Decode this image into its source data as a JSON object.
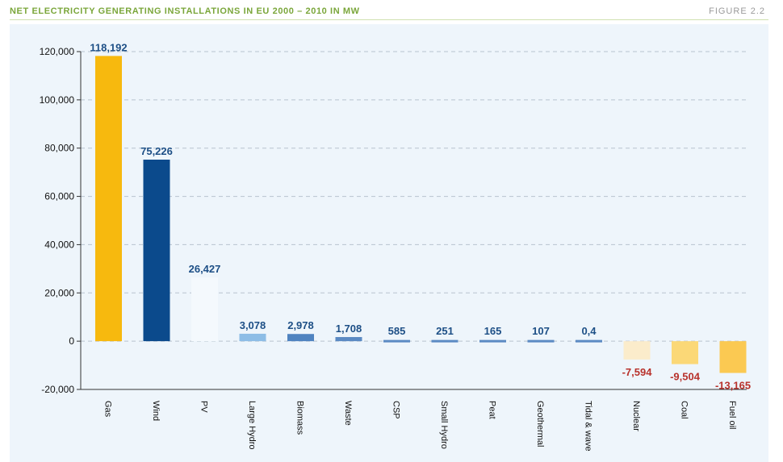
{
  "header": {
    "title": "NET ELECTRICITY GENERATING INSTALLATIONS IN EU 2000 – 2010 IN MW",
    "figure": "FIGURE 2.2"
  },
  "chart_data": {
    "type": "bar",
    "title": "NET ELECTRICITY GENERATING INSTALLATIONS IN EU 2000 – 2010 IN MW",
    "xlabel": "",
    "ylabel": "",
    "ylim": [
      -20000,
      120000
    ],
    "yticks": [
      -20000,
      0,
      20000,
      40000,
      60000,
      80000,
      100000,
      120000
    ],
    "ytick_labels": [
      "-20,000",
      "0",
      "20,000",
      "40,000",
      "60,000",
      "80,000",
      "100,000",
      "120,000"
    ],
    "grid": true,
    "categories": [
      "Gas",
      "Wind",
      "PV",
      "Large Hydro",
      "Biomass",
      "Waste",
      "CSP",
      "Small Hydro",
      "Peat",
      "Geothermal",
      "Tidal & wave",
      "Nuclear",
      "Coal",
      "Fuel oil"
    ],
    "values": [
      118192,
      75226,
      26427,
      3078,
      2978,
      1708,
      585,
      251,
      165,
      107,
      0.4,
      -7594,
      -9504,
      -13165
    ],
    "data_labels": [
      "118,192",
      "75,226",
      "26,427",
      "3,078",
      "2,978",
      "1,708",
      "585",
      "251",
      "165",
      "107",
      "0,4",
      "-7,594",
      "-9,504",
      "-13,165"
    ],
    "colors": [
      "#f7b90e",
      "#0b4a8c",
      "#f4f9fd",
      "#8dbde6",
      "#4f83c0",
      "#5b8ac3",
      "#5b8ac3",
      "#5b8ac3",
      "#5b8ac3",
      "#5b8ac3",
      "#5b8ac3",
      "#fbeccb",
      "#fbd877",
      "#fbc952"
    ],
    "label_colors": {
      "positive": "#1d4f86",
      "negative": "#b8322c"
    }
  }
}
